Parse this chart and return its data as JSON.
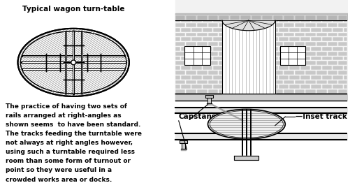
{
  "title": "Typical wagon turn-table",
  "body_text_lines": [
    "The practice of having two sets of",
    "rails arranged at right-angles as",
    "shown seems  to have been standard.",
    "The tracks feeding the turntable were",
    "not always at right angles however,",
    "using such a turntable required less",
    "room than some form of turnout or",
    "point so they were useful in a",
    "crowded works area or docks."
  ],
  "label_capstans": "Capstans",
  "label_inset": "—Inset track",
  "bg_color": "#ffffff",
  "line_color": "#000000"
}
